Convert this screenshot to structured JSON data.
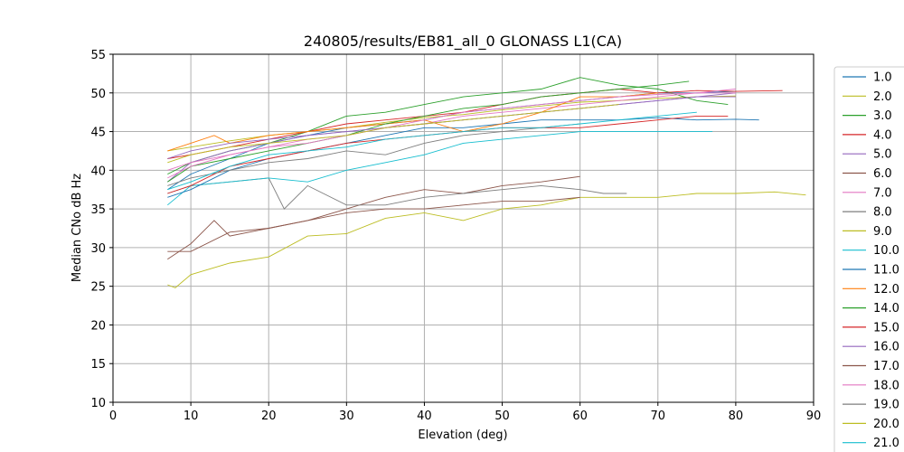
{
  "chart_data": {
    "type": "line",
    "title": "240805/results/EB81_all_0 GLONASS L1(CA)",
    "xlabel": "Elevation (deg)",
    "ylabel": "Median CNo dB Hz",
    "xlim": [
      0,
      90
    ],
    "ylim": [
      10,
      55
    ],
    "xticks": [
      0,
      10,
      20,
      30,
      40,
      50,
      60,
      70,
      80,
      90
    ],
    "yticks": [
      10,
      15,
      20,
      25,
      30,
      35,
      40,
      45,
      50,
      55
    ],
    "grid": true,
    "legend_position": "right (clipped)",
    "series": [
      {
        "name": "1.0",
        "color": "#1f77b4",
        "x": [
          7,
          10,
          15,
          20,
          25,
          30,
          35,
          40,
          45,
          50,
          55,
          60,
          65,
          70,
          75,
          80
        ],
        "y": [
          37.5,
          39.5,
          41.5,
          43.5,
          44.5,
          45.5,
          46,
          46.5,
          47.5,
          48,
          48.5,
          49,
          49.5,
          50,
          50,
          50.2
        ]
      },
      {
        "name": "2.0",
        "color": "#bcbd22",
        "x": [
          7,
          10,
          15,
          20,
          25,
          30,
          35,
          40,
          45,
          50,
          55,
          60,
          65,
          70,
          75,
          80
        ],
        "y": [
          42.5,
          43,
          43.8,
          44.5,
          45,
          45.5,
          46.2,
          46.8,
          47.2,
          47.8,
          48.3,
          48.8,
          49,
          49.3,
          49.5,
          49.6
        ]
      },
      {
        "name": "3.0",
        "color": "#2ca02c",
        "x": [
          7,
          10,
          15,
          20,
          25,
          30,
          35,
          40,
          45,
          50,
          55,
          60,
          65,
          70,
          75,
          79
        ],
        "y": [
          39.5,
          41,
          42.5,
          43.5,
          45,
          47,
          47.5,
          48.5,
          49.5,
          50,
          50.5,
          52,
          51,
          50.5,
          49,
          48.5
        ]
      },
      {
        "name": "4.0",
        "color": "#d62728",
        "x": [
          7,
          10,
          15,
          20,
          25,
          30,
          35,
          40,
          45,
          50,
          55,
          60,
          65,
          70,
          75,
          80,
          86
        ],
        "y": [
          41.5,
          42,
          43,
          44,
          45,
          46,
          46.5,
          47,
          47.5,
          48.5,
          49.5,
          50,
          50.5,
          50,
          50.3,
          50.2,
          50.3
        ]
      },
      {
        "name": "5.0",
        "color": "#9467bd",
        "x": [
          7,
          10,
          15,
          20,
          25,
          30,
          35,
          40,
          45,
          50,
          55,
          60,
          65,
          70,
          75,
          80
        ],
        "y": [
          38.5,
          41,
          42.5,
          43.5,
          44.5,
          45,
          45.5,
          46,
          46.5,
          47,
          47.5,
          48,
          48.5,
          49,
          49.5,
          49.5
        ]
      },
      {
        "name": "6.0",
        "color": "#8c564b",
        "x": [
          7,
          10,
          15,
          20,
          25,
          30,
          35,
          40,
          45,
          50,
          55,
          60
        ],
        "y": [
          29.5,
          29.5,
          32,
          32.5,
          33.5,
          35,
          36.5,
          37.5,
          37,
          38,
          38.5,
          39.2
        ]
      },
      {
        "name": "7.0",
        "color": "#e377c2",
        "x": [
          7,
          10,
          15,
          20,
          25,
          30,
          35,
          40,
          45,
          50,
          55,
          60,
          65,
          70,
          75,
          80
        ],
        "y": [
          40,
          41,
          42,
          43,
          44,
          44.5,
          45.5,
          46,
          47,
          47.5,
          48,
          48.5,
          49,
          49.5,
          50,
          50.5
        ]
      },
      {
        "name": "8.0",
        "color": "#7f7f7f",
        "x": [
          7,
          10,
          15,
          20,
          22,
          25,
          30,
          35,
          40,
          45,
          50,
          55,
          60,
          63,
          66
        ],
        "y": [
          37,
          38,
          38.5,
          39,
          35,
          38,
          35.5,
          35.5,
          36.5,
          37,
          37.5,
          38,
          37.5,
          37,
          37
        ]
      },
      {
        "name": "9.0",
        "color": "#bcbd22",
        "x": [
          7,
          8,
          10,
          15,
          20,
          25,
          30,
          35,
          40,
          45,
          50,
          55,
          60,
          65,
          70,
          75,
          80,
          85,
          89
        ],
        "y": [
          25.2,
          24.8,
          26.5,
          28,
          28.8,
          31.5,
          31.8,
          33.8,
          34.5,
          33.5,
          35,
          35.5,
          36.5,
          36.5,
          36.5,
          37,
          37,
          37.2,
          36.8
        ]
      },
      {
        "name": "10.0",
        "color": "#17becf",
        "x": [
          7,
          10,
          15,
          20,
          25,
          30,
          35,
          40,
          45,
          50,
          55,
          60,
          65,
          70,
          75,
          77
        ],
        "y": [
          35.5,
          38,
          38.5,
          39,
          38.5,
          40,
          41,
          42,
          43.5,
          44,
          44.5,
          45,
          45,
          45,
          45,
          45
        ]
      },
      {
        "name": "11.0",
        "color": "#1f77b4",
        "x": [
          7,
          10,
          15,
          20,
          25,
          30,
          35,
          40,
          45,
          50,
          55,
          60,
          65,
          70,
          75,
          80,
          83
        ],
        "y": [
          36.5,
          37.5,
          40,
          41.5,
          42.5,
          43.5,
          44.5,
          45.5,
          45.5,
          46,
          46.5,
          46.5,
          46.5,
          46.8,
          46.5,
          46.6,
          46.5
        ]
      },
      {
        "name": "12.0",
        "color": "#ff7f0e",
        "x": [
          7,
          10,
          13,
          15,
          20,
          25,
          30,
          35,
          40,
          45,
          50,
          55,
          60,
          65,
          70
        ],
        "y": [
          42.5,
          43.5,
          44.5,
          43.5,
          44.5,
          45,
          45.5,
          46,
          46.5,
          45,
          46,
          47.5,
          49.5,
          49.5,
          50
        ]
      },
      {
        "name": "14.0",
        "color": "#2ca02c",
        "x": [
          7,
          10,
          15,
          20,
          25,
          30,
          35,
          40,
          45,
          50,
          55,
          60,
          65,
          70,
          74
        ],
        "y": [
          38.5,
          40.5,
          41.5,
          42.5,
          43.5,
          44.5,
          46,
          47,
          48,
          48.5,
          49.5,
          50,
          50.5,
          51,
          51.5
        ]
      },
      {
        "name": "15.0",
        "color": "#d62728",
        "x": [
          7,
          10,
          15,
          20,
          25,
          30,
          35,
          40,
          45,
          50,
          55,
          60,
          65,
          70,
          75,
          79
        ],
        "y": [
          37,
          38,
          40.5,
          41.5,
          42.5,
          43.5,
          44,
          44.5,
          45,
          45.5,
          45.5,
          45.5,
          46,
          46.5,
          47,
          47
        ]
      },
      {
        "name": "16.0",
        "color": "#9467bd",
        "x": [
          7,
          10,
          15,
          20,
          25,
          30,
          35,
          40,
          45,
          50,
          55,
          60,
          65,
          70,
          75,
          80
        ],
        "y": [
          41.5,
          42.5,
          43.5,
          44,
          44.5,
          45,
          45.5,
          46,
          46.5,
          47,
          47.5,
          48,
          48.5,
          49,
          49.5,
          50
        ]
      },
      {
        "name": "17.0",
        "color": "#8c564b",
        "x": [
          7,
          10,
          13,
          15,
          20,
          25,
          30,
          35,
          40,
          45,
          50,
          55,
          60
        ],
        "y": [
          28.5,
          30.5,
          33.5,
          31.5,
          32.5,
          33.5,
          34.5,
          35,
          35,
          35.5,
          36,
          36,
          36.5
        ]
      },
      {
        "name": "18.0",
        "color": "#e377c2",
        "x": [
          7,
          10,
          15,
          20,
          25,
          30,
          35,
          40,
          45,
          50,
          55,
          60,
          65,
          70,
          75,
          80
        ],
        "y": [
          39,
          40.5,
          42,
          43,
          43.5,
          44.5,
          45.5,
          46.5,
          47.5,
          48,
          48.5,
          49,
          49.5,
          49.8,
          50,
          50
        ]
      },
      {
        "name": "19.0",
        "color": "#7f7f7f",
        "x": [
          7,
          10,
          15,
          20,
          25,
          30,
          35,
          40,
          45,
          50,
          55,
          60
        ],
        "y": [
          38,
          39,
          40,
          41,
          41.5,
          42.5,
          42,
          43.5,
          44.5,
          45,
          45.5,
          46
        ]
      },
      {
        "name": "20.0",
        "color": "#bcbd22",
        "x": [
          7,
          10,
          15,
          20,
          25,
          30,
          35,
          40,
          45,
          50,
          55,
          60,
          65
        ],
        "y": [
          41,
          42,
          43,
          43.5,
          44,
          44.5,
          45.5,
          46,
          46.5,
          47,
          47.5,
          48,
          48.5
        ]
      },
      {
        "name": "21.0",
        "color": "#17becf",
        "x": [
          7,
          10,
          15,
          20,
          25,
          30,
          35,
          40,
          45,
          50,
          55,
          60,
          65,
          70,
          75
        ],
        "y": [
          37.5,
          38.5,
          40.5,
          42,
          42.5,
          43,
          44,
          44.5,
          45,
          45.5,
          45.5,
          46,
          46.5,
          47,
          47.5
        ]
      }
    ]
  }
}
